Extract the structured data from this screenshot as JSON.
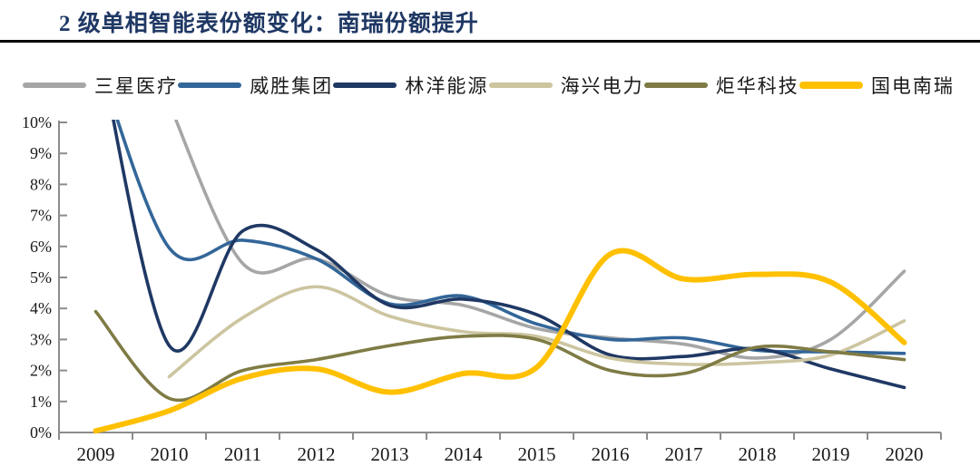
{
  "header": {
    "title": "2 级单相智能表份额变化：南瑞份额提升",
    "title_color": "#1F3864",
    "rule_color": "#000000"
  },
  "chart_data": {
    "type": "line",
    "title": "2 级单相智能表份额变化：南瑞份额提升",
    "x": [
      "2009",
      "2010",
      "2011",
      "2012",
      "2013",
      "2014",
      "2015",
      "2016",
      "2017",
      "2018",
      "2019",
      "2020"
    ],
    "series": [
      {
        "id": "sanxing-medical",
        "name": "三星医疗",
        "color": "#A6A6A6",
        "line_width": 3.6,
        "values": [
          null,
          10.6,
          5.45,
          5.6,
          4.4,
          4.1,
          3.35,
          3.05,
          2.85,
          2.4,
          3.0,
          5.2
        ]
      },
      {
        "id": "wasion-group",
        "name": "威胜集团",
        "color": "#336699",
        "line_width": 3.6,
        "values": [
          12.2,
          5.95,
          6.2,
          5.6,
          4.15,
          4.4,
          3.5,
          3.0,
          3.05,
          2.65,
          2.6,
          2.55
        ]
      },
      {
        "id": "linyang-energy",
        "name": "林洋能源",
        "color": "#1F3864",
        "line_width": 3.6,
        "values": [
          13.0,
          2.8,
          6.5,
          5.9,
          4.1,
          4.3,
          3.8,
          2.5,
          2.45,
          2.7,
          2.05,
          1.45
        ]
      },
      {
        "id": "haixing-power",
        "name": "海兴电力",
        "color": "#CCC5A0",
        "line_width": 3.6,
        "values": [
          null,
          1.8,
          3.7,
          4.7,
          3.75,
          3.25,
          3.1,
          2.4,
          2.2,
          2.25,
          2.5,
          3.6
        ]
      },
      {
        "id": "juhua-tech",
        "name": "炬华科技",
        "color": "#7F7B45",
        "line_width": 3.6,
        "values": [
          3.9,
          1.1,
          2.0,
          2.35,
          2.8,
          3.1,
          3.0,
          2.0,
          1.9,
          2.75,
          2.6,
          2.35
        ]
      },
      {
        "id": "guodian-nari",
        "name": "国电南瑞",
        "color": "#FFC000",
        "line_width": 6.0,
        "values": [
          0.05,
          0.7,
          1.75,
          2.05,
          1.3,
          1.9,
          2.1,
          5.75,
          4.95,
          5.1,
          4.85,
          2.9
        ]
      }
    ],
    "ylim": [
      0,
      10
    ],
    "ytick_labels": [
      "0%",
      "1%",
      "2%",
      "3%",
      "4%",
      "5%",
      "6%",
      "7%",
      "8%",
      "9%",
      "10%"
    ],
    "xlabel": "",
    "ylabel": "",
    "grid": false,
    "legend_position": "top",
    "axis_color": "#8C8C8C",
    "tick_label_color": "#1a1a1a"
  }
}
